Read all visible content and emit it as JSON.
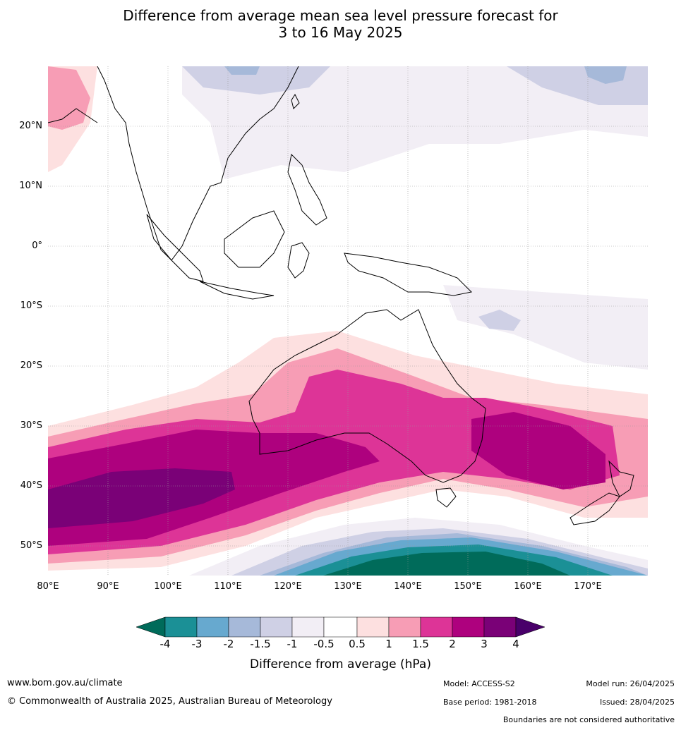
{
  "title": {
    "line1": "Difference from average mean sea level pressure forecast for",
    "line2": "3 to 16 May 2025"
  },
  "map": {
    "lat_ticks": [
      "20°N",
      "10°N",
      "0°",
      "10°S",
      "20°S",
      "30°S",
      "40°S",
      "50°S"
    ],
    "lon_ticks": [
      "80°E",
      "90°E",
      "100°E",
      "110°E",
      "120°E",
      "130°E",
      "140°E",
      "150°E",
      "160°E",
      "170°E"
    ],
    "extent": {
      "lon_min": 80,
      "lon_max": 180,
      "lat_min": -55,
      "lat_max": 30
    }
  },
  "colorbar": {
    "title": "Difference from average (hPa)",
    "labels": [
      "-4",
      "-3",
      "-2",
      "-1.5",
      "-1",
      "-0.5",
      "0.5",
      "1",
      "1.5",
      "2",
      "3",
      "4"
    ],
    "colors": [
      "#006b5a",
      "#1b9096",
      "#67a9cf",
      "#a6b9d9",
      "#cfd0e5",
      "#f2eef5",
      "#ffffff",
      "#fde0e0",
      "#f79db5",
      "#dd3497",
      "#ae017e",
      "#7a0177",
      "#49006a"
    ]
  },
  "footer": {
    "website": "www.bom.gov.au/climate",
    "copyright": "© Commonwealth of Australia 2025, Australian Bureau of Meteorology",
    "model": "Model: ACCESS-S2",
    "base_period": "Base period: 1981-2018",
    "model_run": "Model run: 26/04/2025",
    "issued": "Issued: 28/04/2025",
    "disclaimer": "Boundaries are not considered authoritative"
  }
}
